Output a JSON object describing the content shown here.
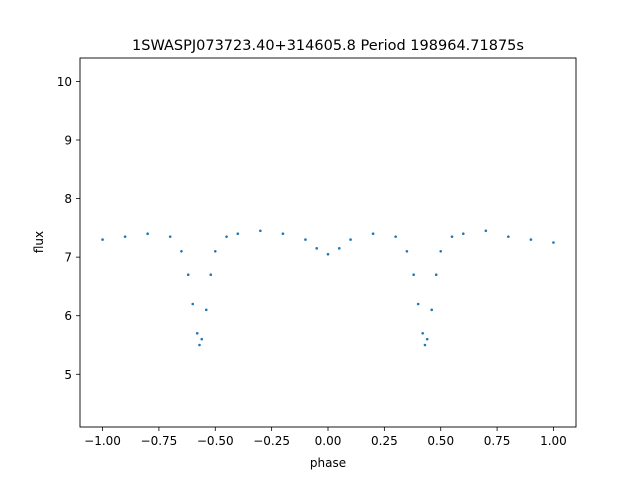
{
  "chart_data": {
    "type": "scatter",
    "title": "1SWASPJ073723.40+314605.8 Period 198964.71875s",
    "xlabel": "phase",
    "ylabel": "flux",
    "xlim": [
      -1.1,
      1.1
    ],
    "ylim": [
      4.1,
      10.4
    ],
    "x_ticks": [
      -1.0,
      -0.75,
      -0.5,
      -0.25,
      0.0,
      0.25,
      0.5,
      0.75,
      1.0
    ],
    "x_tick_labels": [
      "−1.00",
      "−0.75",
      "−0.50",
      "−0.25",
      "0.00",
      "0.25",
      "0.50",
      "0.75",
      "1.00"
    ],
    "y_ticks": [
      5,
      6,
      7,
      8,
      9,
      10
    ],
    "y_tick_labels": [
      "5",
      "6",
      "7",
      "8",
      "9",
      "10"
    ],
    "grid": false,
    "legend": "none",
    "point_color": "#1f77b4",
    "series": [
      {
        "x": [
          -1.0,
          -0.9,
          -0.8,
          -0.7,
          -0.65,
          -0.62,
          -0.6,
          -0.58,
          -0.57,
          -0.56,
          -0.54,
          -0.52,
          -0.5,
          -0.45,
          -0.4,
          -0.3,
          -0.2,
          -0.1,
          -0.05,
          0.0,
          0.05,
          0.1,
          0.2,
          0.3,
          0.35,
          0.38,
          0.4,
          0.42,
          0.43,
          0.44,
          0.46,
          0.48,
          0.5,
          0.55,
          0.6,
          0.7,
          0.8,
          0.9,
          1.0
        ],
        "y": [
          7.3,
          7.35,
          7.4,
          7.35,
          7.1,
          6.7,
          6.2,
          5.7,
          5.5,
          5.6,
          6.1,
          6.7,
          7.1,
          7.35,
          7.4,
          7.45,
          7.4,
          7.3,
          7.15,
          7.05,
          7.15,
          7.3,
          7.4,
          7.35,
          7.1,
          6.7,
          6.2,
          5.7,
          5.5,
          5.6,
          6.1,
          6.7,
          7.1,
          7.35,
          7.4,
          7.45,
          7.35,
          7.3,
          7.25
        ]
      }
    ]
  }
}
